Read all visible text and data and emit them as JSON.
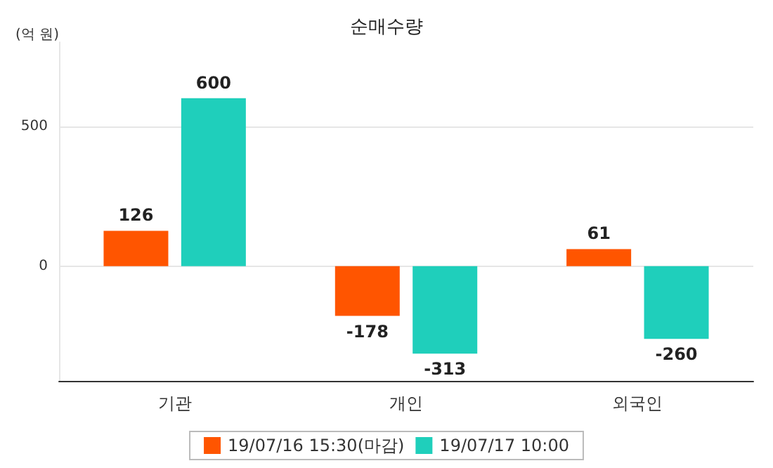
{
  "chart_data": {
    "type": "bar",
    "title": "순매수량",
    "ylabel": "(억 원)",
    "categories": [
      "기관",
      "개인",
      "외국인"
    ],
    "series": [
      {
        "name": "19/07/16 15:30(마감)",
        "color": "#ff5500",
        "values": [
          126,
          -178,
          61
        ]
      },
      {
        "name": "19/07/17 10:00",
        "color": "#1fcfbb",
        "values": [
          600,
          -313,
          -260
        ]
      }
    ],
    "ylim": [
      -410,
      800
    ],
    "yticks": [
      0,
      500
    ],
    "grid": "y",
    "legend": "bottom",
    "data_labels": true
  }
}
